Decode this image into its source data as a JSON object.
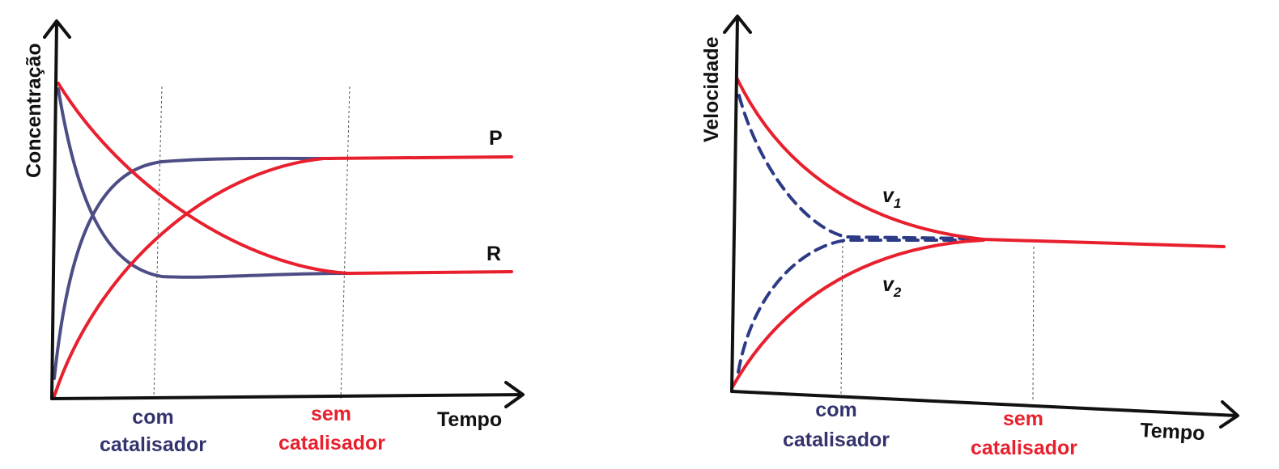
{
  "colors": {
    "with_catalyst": "#4d4d86",
    "without_catalyst": "#e8202e",
    "axis": "#111111"
  },
  "chart_data": [
    {
      "type": "line",
      "ylabel": "Concentração",
      "xlabel": "Tempo",
      "grid": false,
      "annotations": {
        "with_catalyst_line1": "com",
        "with_catalyst_line2": "catalisador",
        "without_catalyst_line1": "sem",
        "without_catalyst_line2": "catalisador"
      },
      "x_range": [
        0,
        10
      ],
      "y_range": [
        0,
        10
      ],
      "marker_times": {
        "with_catalyst": 2.2,
        "without_catalyst": 6.2
      },
      "series": [
        {
          "name": "P",
          "catalyst": "without",
          "x": [
            0,
            1,
            2,
            3,
            4,
            5,
            6,
            7,
            8,
            9,
            10
          ],
          "values": [
            0,
            3.4,
            5.2,
            6.3,
            7.0,
            7.5,
            7.7,
            7.7,
            7.7,
            7.7,
            7.7
          ]
        },
        {
          "name": "R",
          "catalyst": "without",
          "x": [
            0,
            1,
            2,
            3,
            4,
            5,
            6,
            7,
            8,
            9,
            10
          ],
          "values": [
            10,
            7.0,
            5.2,
            4.3,
            3.7,
            3.4,
            3.2,
            3.2,
            3.2,
            3.2,
            3.2
          ]
        },
        {
          "name": "P",
          "catalyst": "with",
          "x": [
            0,
            0.5,
            1,
            1.5,
            2,
            2.5,
            3,
            4,
            5,
            6
          ],
          "values": [
            0,
            4.5,
            6.4,
            7.2,
            7.6,
            7.7,
            7.7,
            7.7,
            7.7,
            7.7
          ]
        },
        {
          "name": "R",
          "catalyst": "with",
          "x": [
            0,
            0.5,
            1,
            1.5,
            2,
            2.5,
            3,
            4,
            5,
            6
          ],
          "values": [
            10,
            6.0,
            4.2,
            3.5,
            3.2,
            3.2,
            3.2,
            3.2,
            3.2,
            3.2
          ]
        }
      ]
    },
    {
      "type": "line",
      "ylabel": "Velocidade",
      "xlabel": "Tempo",
      "grid": false,
      "annotations": {
        "with_catalyst_line1": "com",
        "with_catalyst_line2": "catalisador",
        "without_catalyst_line1": "sem",
        "without_catalyst_line2": "catalisador"
      },
      "x_range": [
        0,
        10
      ],
      "y_range": [
        0,
        10
      ],
      "marker_times": {
        "with_catalyst": 2.2,
        "without_catalyst": 6.2
      },
      "series": [
        {
          "name": "v",
          "subscript": "1",
          "catalyst": "without",
          "style": "solid",
          "x": [
            0,
            1,
            2,
            3,
            4,
            5,
            6,
            7,
            8,
            10
          ],
          "values": [
            10,
            6.8,
            5.0,
            4.1,
            3.6,
            3.3,
            3.2,
            3.2,
            3.2,
            3.2
          ]
        },
        {
          "name": "v",
          "subscript": "2",
          "catalyst": "without",
          "style": "solid",
          "x": [
            0,
            1,
            2,
            3,
            4,
            5,
            6,
            7,
            8,
            10
          ],
          "values": [
            0,
            1.5,
            2.3,
            2.7,
            2.9,
            3.0,
            3.1,
            3.2,
            3.2,
            3.2
          ]
        },
        {
          "name": "v1",
          "catalyst": "with",
          "style": "dashed",
          "x": [
            0,
            0.5,
            1,
            1.5,
            2,
            3,
            4,
            5.5
          ],
          "values": [
            10,
            6.5,
            4.6,
            3.7,
            3.3,
            3.2,
            3.2,
            3.2
          ]
        },
        {
          "name": "v2",
          "catalyst": "with",
          "style": "dashed",
          "x": [
            0,
            0.5,
            1,
            1.5,
            2,
            3,
            4,
            5.5
          ],
          "values": [
            0,
            1.9,
            2.7,
            3.0,
            3.1,
            3.2,
            3.2,
            3.2
          ]
        }
      ]
    }
  ]
}
